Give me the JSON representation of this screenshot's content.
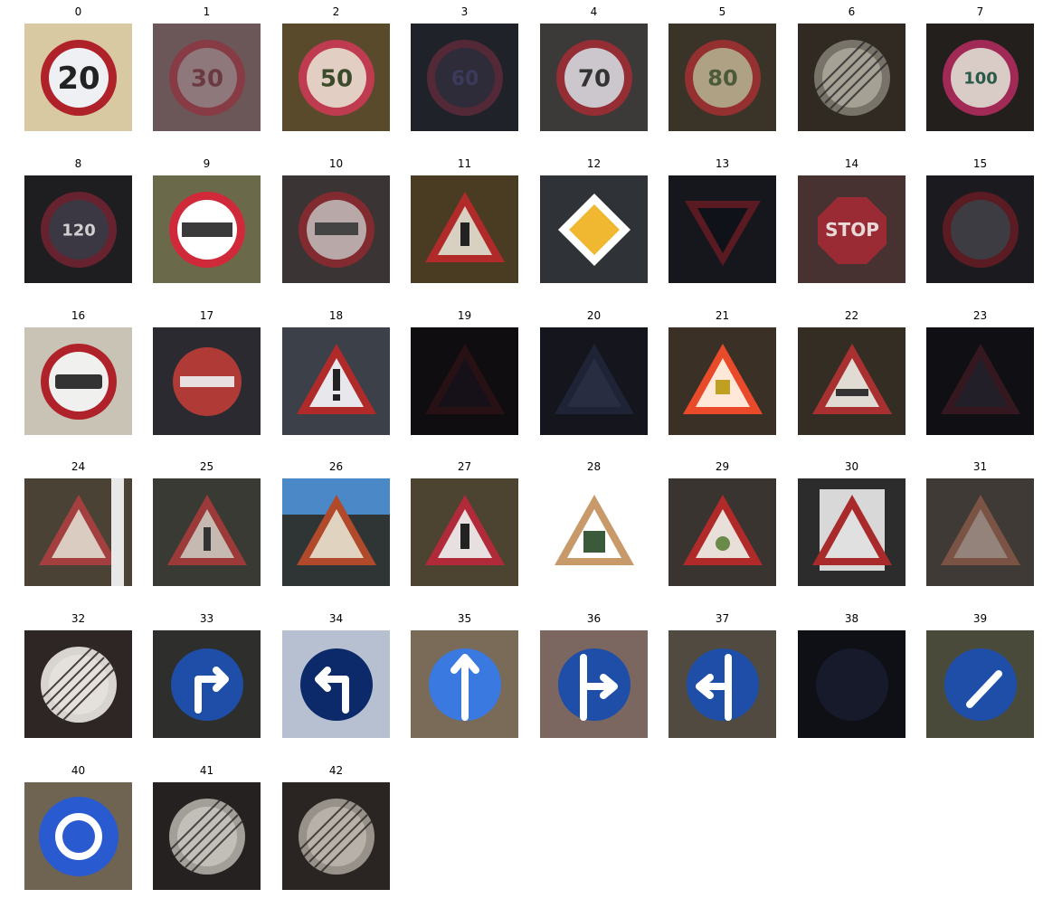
{
  "figure": {
    "tiles": [
      {
        "label": "0",
        "content": "speed-limit-20",
        "bg": "#d9c9a3"
      },
      {
        "label": "1",
        "content": "speed-limit-30",
        "bg": "#6b5658"
      },
      {
        "label": "2",
        "content": "speed-limit-50",
        "bg": "#5a4a2c"
      },
      {
        "label": "3",
        "content": "speed-limit-60",
        "bg": "#20222a"
      },
      {
        "label": "4",
        "content": "speed-limit-70",
        "bg": "#3c3a38"
      },
      {
        "label": "5",
        "content": "speed-limit-80",
        "bg": "#3a3428"
      },
      {
        "label": "6",
        "content": "end-speed-limit-80",
        "bg": "#302a22"
      },
      {
        "label": "7",
        "content": "speed-limit-100",
        "bg": "#221f1c"
      },
      {
        "label": "8",
        "content": "speed-limit-120",
        "bg": "#1e1d20"
      },
      {
        "label": "9",
        "content": "no-passing",
        "bg": "#6a6a4a"
      },
      {
        "label": "10",
        "content": "no-passing-trucks",
        "bg": "#3a3434"
      },
      {
        "label": "11",
        "content": "right-of-way",
        "bg": "#4a3c22"
      },
      {
        "label": "12",
        "content": "priority-road",
        "bg": "#2f3236"
      },
      {
        "label": "13",
        "content": "yield",
        "bg": "#15171c"
      },
      {
        "label": "14",
        "content": "stop",
        "bg": "#473131"
      },
      {
        "label": "15",
        "content": "no-vehicles",
        "bg": "#1a1a1f"
      },
      {
        "label": "16",
        "content": "no-trucks",
        "bg": "#c9c3b5"
      },
      {
        "label": "17",
        "content": "no-entry",
        "bg": "#2a2a30"
      },
      {
        "label": "18",
        "content": "general-caution",
        "bg": "#3c4048"
      },
      {
        "label": "19",
        "content": "curve-left",
        "bg": "#0f0d10"
      },
      {
        "label": "20",
        "content": "curve-right",
        "bg": "#15161d"
      },
      {
        "label": "21",
        "content": "double-curve",
        "bg": "#3a3026"
      },
      {
        "label": "22",
        "content": "bumpy-road",
        "bg": "#332d24"
      },
      {
        "label": "23",
        "content": "slippery-road",
        "bg": "#0f0f14"
      },
      {
        "label": "24",
        "content": "road-narrows",
        "bg": "#4a4234"
      },
      {
        "label": "25",
        "content": "road-work",
        "bg": "#3a3a34"
      },
      {
        "label": "26",
        "content": "traffic-signals",
        "bg": "#2f3434"
      },
      {
        "label": "27",
        "content": "pedestrians",
        "bg": "#4c4430"
      },
      {
        "label": "28",
        "content": "children-crossing",
        "bg": "#ffffff"
      },
      {
        "label": "29",
        "content": "bicycles-crossing",
        "bg": "#3a3430"
      },
      {
        "label": "30",
        "content": "ice-snow",
        "bg": "#2c2c2c"
      },
      {
        "label": "31",
        "content": "wild-animals",
        "bg": "#3f3a36"
      },
      {
        "label": "32",
        "content": "end-of-limits",
        "bg": "#2d2624"
      },
      {
        "label": "33",
        "content": "turn-right-ahead",
        "bg": "#2e2e2c"
      },
      {
        "label": "34",
        "content": "turn-left-ahead",
        "bg": "#b7c0d0"
      },
      {
        "label": "35",
        "content": "ahead-only",
        "bg": "#7a6a58"
      },
      {
        "label": "36",
        "content": "straight-or-right",
        "bg": "#7c6660"
      },
      {
        "label": "37",
        "content": "straight-or-left",
        "bg": "#504a40"
      },
      {
        "label": "38",
        "content": "keep-right",
        "bg": "#0f1016"
      },
      {
        "label": "39",
        "content": "keep-left",
        "bg": "#4a4a3a"
      },
      {
        "label": "40",
        "content": "roundabout",
        "bg": "#6f6452"
      },
      {
        "label": "41",
        "content": "end-no-passing",
        "bg": "#242120"
      },
      {
        "label": "42",
        "content": "end-no-passing-trucks",
        "bg": "#2a2522"
      }
    ]
  }
}
